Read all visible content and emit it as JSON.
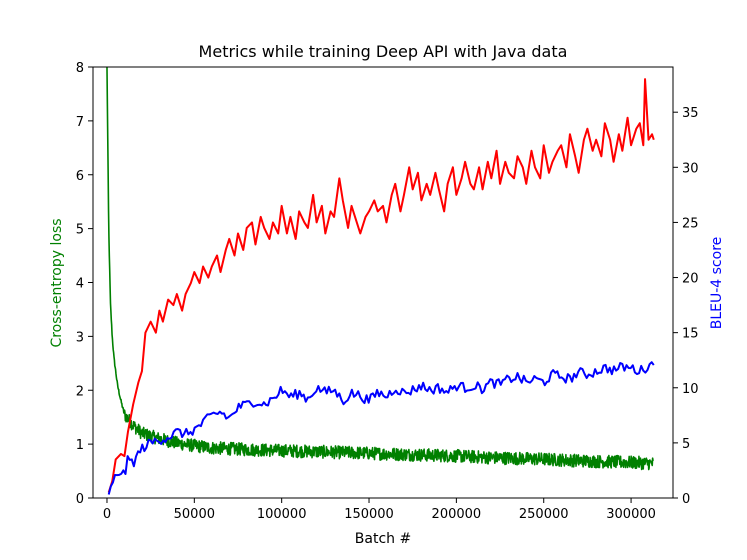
{
  "chart_data": {
    "type": "line",
    "title": "Metrics while training Deep API with Java data",
    "xlabel": "Batch #",
    "ylabel_left": "Cross-entropy loss",
    "ylabel_right": "BLEU-4 score",
    "xlim": [
      -8000,
      324000
    ],
    "ylim_left": [
      0,
      8
    ],
    "ylim_right": [
      0,
      39.1
    ],
    "x_ticks": [
      0,
      50000,
      100000,
      150000,
      200000,
      250000,
      300000
    ],
    "y_left_ticks": [
      0,
      1,
      2,
      3,
      4,
      5,
      6,
      7,
      8
    ],
    "y_right_ticks": [
      0,
      5,
      10,
      15,
      20,
      25,
      30,
      35
    ],
    "grid": false,
    "series": [
      {
        "name": "Cross-entropy loss",
        "axis": "left",
        "color": "#008000",
        "x": [
          0,
          1000,
          2000,
          3000,
          4000,
          6000,
          8000,
          10000,
          15000,
          20000,
          30000,
          40000,
          50000,
          60000,
          80000,
          100000,
          120000,
          150000,
          180000,
          200000,
          220000,
          250000,
          280000,
          300000,
          313000
        ],
        "values": [
          8.0,
          5.0,
          3.6,
          3.0,
          2.6,
          2.1,
          1.8,
          1.55,
          1.35,
          1.2,
          1.1,
          1.02,
          0.97,
          0.93,
          0.9,
          0.88,
          0.86,
          0.83,
          0.8,
          0.78,
          0.75,
          0.72,
          0.68,
          0.66,
          0.64
        ],
        "noise_amplitude": 0.12
      },
      {
        "name": "BLEU-4 (red)",
        "axis": "right",
        "color": "#ff0000",
        "x": [
          1000,
          3000,
          5000,
          8000,
          10000,
          12000,
          15000,
          18000,
          20000,
          22000,
          25000,
          28000,
          30000,
          32000,
          35000,
          38000,
          40000,
          43000,
          45000,
          48000,
          50000,
          53000,
          55000,
          58000,
          60000,
          63000,
          65000,
          68000,
          70000,
          73000,
          75000,
          78000,
          80000,
          83000,
          85000,
          88000,
          90000,
          93000,
          95000,
          98000,
          100000,
          103000,
          105000,
          108000,
          110000,
          113000,
          115000,
          118000,
          120000,
          123000,
          125000,
          128000,
          130000,
          133000,
          135000,
          138000,
          140000,
          143000,
          145000,
          148000,
          150000,
          153000,
          155000,
          158000,
          160000,
          163000,
          165000,
          168000,
          170000,
          173000,
          175000,
          178000,
          180000,
          183000,
          185000,
          188000,
          190000,
          193000,
          195000,
          198000,
          200000,
          203000,
          205000,
          208000,
          210000,
          213000,
          215000,
          218000,
          220000,
          223000,
          225000,
          228000,
          230000,
          233000,
          235000,
          238000,
          240000,
          243000,
          245000,
          248000,
          250000,
          253000,
          255000,
          258000,
          260000,
          263000,
          265000,
          268000,
          270000,
          273000,
          275000,
          278000,
          280000,
          283000,
          285000,
          288000,
          290000,
          293000,
          295000,
          298000,
          300000,
          303000,
          305000,
          307000,
          308000,
          310000,
          312000,
          313000
        ],
        "values": [
          0.5,
          1.5,
          3.5,
          4.0,
          3.8,
          6.0,
          8.5,
          10.5,
          11.5,
          15.0,
          16.0,
          15.0,
          17.0,
          16.0,
          18.0,
          17.5,
          18.5,
          17.0,
          18.5,
          19.5,
          20.5,
          19.5,
          21.0,
          20.0,
          21.0,
          22.0,
          20.5,
          22.5,
          23.5,
          22.0,
          24.0,
          22.5,
          24.5,
          25.0,
          23.0,
          25.5,
          24.5,
          23.5,
          25.0,
          24.0,
          26.5,
          24.0,
          25.5,
          23.5,
          26.0,
          25.0,
          24.5,
          27.5,
          25.0,
          26.5,
          24.0,
          26.0,
          25.5,
          29.0,
          27.0,
          24.5,
          26.5,
          25.0,
          24.0,
          25.5,
          26.0,
          27.0,
          26.0,
          26.5,
          25.0,
          27.5,
          28.5,
          26.0,
          27.5,
          30.0,
          28.0,
          29.5,
          27.0,
          28.5,
          27.5,
          29.5,
          28.0,
          26.0,
          28.5,
          30.0,
          27.5,
          29.0,
          30.5,
          28.5,
          28.0,
          30.0,
          28.0,
          30.5,
          29.0,
          31.5,
          28.5,
          30.5,
          29.5,
          29.0,
          31.0,
          30.0,
          28.5,
          31.5,
          30.0,
          29.0,
          32.0,
          29.5,
          30.5,
          31.5,
          32.0,
          30.0,
          33.0,
          31.0,
          29.5,
          32.5,
          33.5,
          31.5,
          32.5,
          31.0,
          34.0,
          32.5,
          30.5,
          33.0,
          31.5,
          34.5,
          32.0,
          33.5,
          34.0,
          32.0,
          38.0,
          32.5,
          33.0,
          32.5
        ],
        "noise_amplitude": 0.0
      },
      {
        "name": "BLEU-4 (blue)",
        "axis": "right",
        "color": "#0000ff",
        "x": [
          1000,
          3000,
          5000,
          8000,
          10000,
          12000,
          15000,
          18000,
          20000,
          25000,
          30000,
          35000,
          40000,
          45000,
          50000,
          55000,
          60000,
          65000,
          70000,
          75000,
          80000,
          85000,
          90000,
          95000,
          100000,
          105000,
          110000,
          115000,
          120000,
          125000,
          130000,
          135000,
          140000,
          145000,
          150000,
          155000,
          160000,
          165000,
          170000,
          175000,
          180000,
          185000,
          190000,
          195000,
          200000,
          205000,
          210000,
          215000,
          220000,
          225000,
          230000,
          235000,
          240000,
          245000,
          250000,
          255000,
          260000,
          265000,
          270000,
          275000,
          280000,
          285000,
          290000,
          295000,
          300000,
          305000,
          310000,
          313000
        ],
        "values": [
          0.5,
          1.0,
          2.0,
          2.5,
          2.0,
          3.5,
          3.2,
          4.0,
          4.5,
          5.0,
          5.3,
          5.5,
          6.0,
          5.8,
          6.2,
          6.8,
          7.5,
          7.8,
          7.2,
          8.2,
          8.5,
          8.8,
          8.5,
          9.0,
          9.8,
          9.2,
          9.5,
          9.0,
          10.0,
          9.6,
          9.8,
          8.8,
          9.5,
          9.3,
          8.8,
          9.6,
          9.2,
          10.0,
          9.5,
          9.8,
          10.2,
          9.8,
          10.0,
          9.6,
          10.2,
          10.0,
          10.2,
          9.9,
          10.5,
          10.3,
          10.8,
          11.0,
          10.5,
          10.8,
          10.5,
          11.2,
          11.0,
          10.8,
          11.4,
          11.2,
          11.5,
          11.8,
          11.6,
          11.9,
          11.8,
          11.5,
          12.0,
          12.2
        ],
        "noise_amplitude": 0.45
      }
    ]
  }
}
